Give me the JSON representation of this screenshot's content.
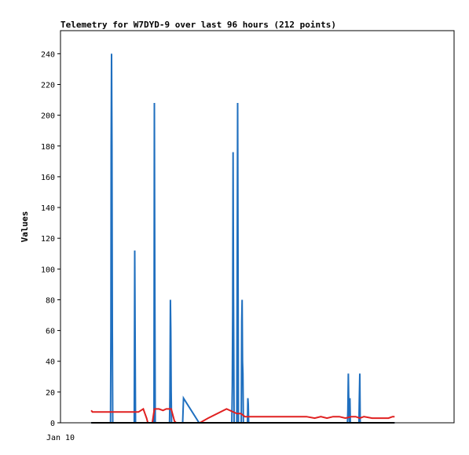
{
  "chart_data": {
    "type": "line",
    "title": "Telemetry for W7DYD-9 over last 96 hours (212 points)",
    "ylabel": "Values",
    "xlabel": "",
    "ylim": [
      0,
      255
    ],
    "yticks": [
      0,
      20,
      40,
      60,
      80,
      100,
      120,
      140,
      160,
      180,
      200,
      220,
      240
    ],
    "xtick_labels": [
      "Jan 10"
    ],
    "x_units": "hours",
    "xlim": [
      0,
      96
    ],
    "grid": false,
    "legend": "none",
    "series": [
      {
        "color": "#1f6fbf",
        "points": [
          [
            7.5,
            0
          ],
          [
            12.2,
            0
          ],
          [
            12.3,
            60
          ],
          [
            12.35,
            180
          ],
          [
            12.45,
            240
          ],
          [
            12.55,
            180
          ],
          [
            12.65,
            60
          ],
          [
            12.75,
            0
          ],
          [
            18.0,
            0
          ],
          [
            18.1,
            112
          ],
          [
            18.2,
            56
          ],
          [
            18.3,
            0
          ],
          [
            22.8,
            0
          ],
          [
            22.9,
            208
          ],
          [
            23.0,
            104
          ],
          [
            23.1,
            0
          ],
          [
            26.6,
            0
          ],
          [
            26.7,
            16
          ],
          [
            26.8,
            80
          ],
          [
            26.9,
            60
          ],
          [
            27.0,
            20
          ],
          [
            27.1,
            0
          ],
          [
            29.8,
            0
          ],
          [
            30.0,
            16
          ],
          [
            33.8,
            0
          ],
          [
            41.8,
            0
          ],
          [
            41.9,
            24
          ],
          [
            42.0,
            72
          ],
          [
            42.1,
            176
          ],
          [
            42.2,
            88
          ],
          [
            42.35,
            0
          ],
          [
            43.0,
            0
          ],
          [
            43.1,
            100
          ],
          [
            43.2,
            208
          ],
          [
            43.3,
            104
          ],
          [
            43.4,
            0
          ],
          [
            44.1,
            0
          ],
          [
            44.2,
            66
          ],
          [
            44.3,
            80
          ],
          [
            44.4,
            40
          ],
          [
            44.5,
            32
          ],
          [
            44.6,
            0
          ],
          [
            45.6,
            0
          ],
          [
            45.7,
            16
          ],
          [
            45.8,
            12
          ],
          [
            45.9,
            0
          ],
          [
            70.0,
            0
          ],
          [
            70.1,
            8
          ],
          [
            70.2,
            32
          ],
          [
            70.35,
            8
          ],
          [
            70.5,
            0
          ],
          [
            70.6,
            16
          ],
          [
            70.7,
            0
          ],
          [
            72.8,
            0
          ],
          [
            72.9,
            16
          ],
          [
            73.0,
            32
          ],
          [
            73.1,
            0
          ],
          [
            81.5,
            0
          ]
        ]
      },
      {
        "color": "#e02020",
        "points": [
          [
            7.5,
            8
          ],
          [
            7.8,
            7
          ],
          [
            11.0,
            7
          ],
          [
            15.0,
            7
          ],
          [
            18.0,
            7
          ],
          [
            19.0,
            7
          ],
          [
            20.2,
            9
          ],
          [
            20.6,
            6
          ],
          [
            21.0,
            3
          ],
          [
            21.3,
            0
          ],
          [
            22.4,
            0
          ],
          [
            22.9,
            9
          ],
          [
            24.0,
            9
          ],
          [
            25.0,
            8
          ],
          [
            25.8,
            9
          ],
          [
            27.0,
            9
          ],
          [
            27.8,
            1
          ],
          [
            28.2,
            0
          ],
          [
            34.0,
            0
          ],
          [
            36.0,
            3
          ],
          [
            40.5,
            9
          ],
          [
            43.0,
            6
          ],
          [
            44.0,
            6
          ],
          [
            45.0,
            4
          ],
          [
            50.0,
            4
          ],
          [
            56.0,
            4
          ],
          [
            60.0,
            4
          ],
          [
            62.0,
            3
          ],
          [
            63.5,
            4
          ],
          [
            65.0,
            3
          ],
          [
            66.5,
            4
          ],
          [
            68.0,
            4
          ],
          [
            69.5,
            3
          ],
          [
            71.0,
            4
          ],
          [
            72.0,
            4
          ],
          [
            73.0,
            3
          ],
          [
            74.0,
            4
          ],
          [
            76.0,
            3
          ],
          [
            78.0,
            3
          ],
          [
            80.0,
            3
          ],
          [
            81.0,
            4
          ],
          [
            81.5,
            4
          ]
        ]
      },
      {
        "color": "#000000",
        "points": [
          [
            7.5,
            0
          ],
          [
            81.5,
            0
          ]
        ]
      }
    ]
  }
}
